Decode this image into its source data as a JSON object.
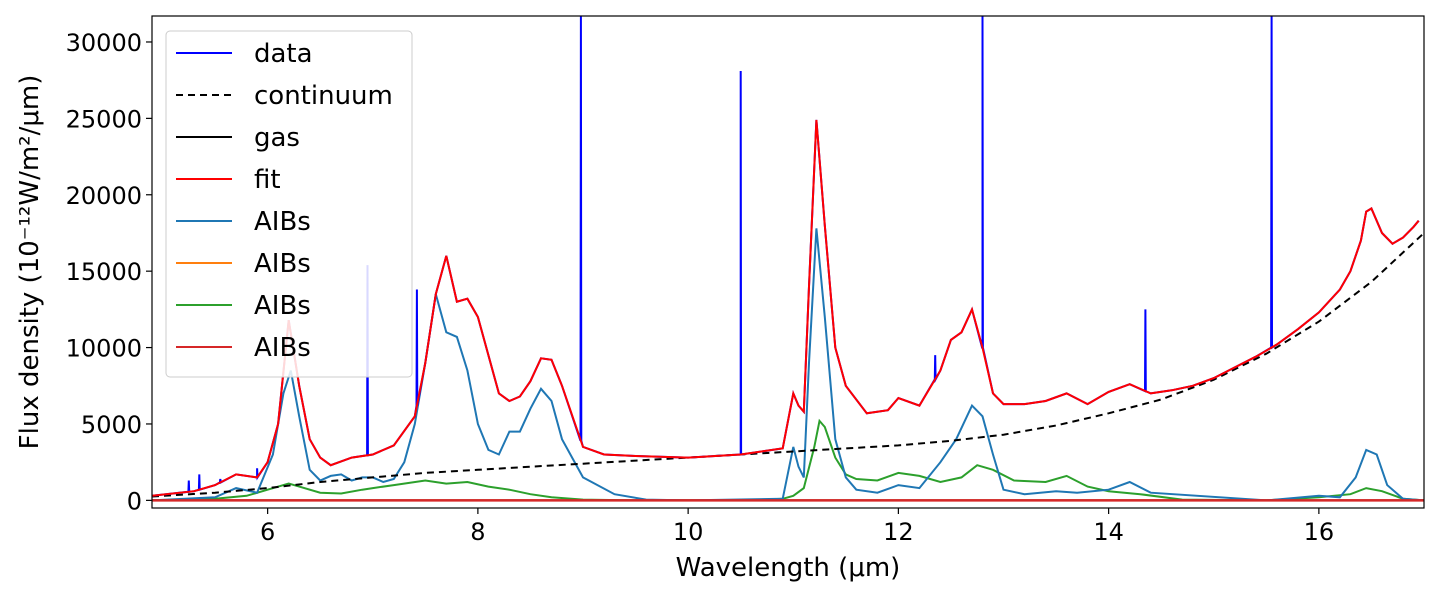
{
  "chart_data": {
    "type": "line",
    "title": "",
    "xlabel": "Wavelength (μm)",
    "ylabel": "Flux density (10⁻¹²W/m²/μm)",
    "xlim": [
      4.9,
      17.0
    ],
    "ylim": [
      -500,
      31700
    ],
    "grid": false,
    "legend_position": "top-left",
    "x_ticks": [
      6,
      8,
      10,
      12,
      14,
      16
    ],
    "y_ticks": [
      0,
      5000,
      10000,
      15000,
      20000,
      25000,
      30000
    ],
    "continuum": {
      "x": [
        4.9,
        5.5,
        6.0,
        6.5,
        7.0,
        7.5,
        8.0,
        8.5,
        9.0,
        9.5,
        10.0,
        10.5,
        11.0,
        11.5,
        12.0,
        12.5,
        13.0,
        13.5,
        14.0,
        14.5,
        15.0,
        15.5,
        16.0,
        16.5,
        17.0
      ],
      "y": [
        250,
        500,
        800,
        1200,
        1500,
        1800,
        2000,
        2200,
        2400,
        2600,
        2800,
        3000,
        3200,
        3400,
        3600,
        3900,
        4300,
        4900,
        5700,
        6600,
        7900,
        9600,
        11700,
        14300,
        17500
      ]
    },
    "fit": {
      "x": [
        4.9,
        5.3,
        5.5,
        5.7,
        5.9,
        6.0,
        6.1,
        6.2,
        6.3,
        6.4,
        6.5,
        6.6,
        6.8,
        7.0,
        7.2,
        7.4,
        7.5,
        7.6,
        7.7,
        7.8,
        7.9,
        8.0,
        8.2,
        8.3,
        8.4,
        8.5,
        8.6,
        8.7,
        8.8,
        9.0,
        9.2,
        9.5,
        10.0,
        10.5,
        10.9,
        11.0,
        11.05,
        11.1,
        11.15,
        11.22,
        11.3,
        11.4,
        11.5,
        11.7,
        11.9,
        12.0,
        12.2,
        12.4,
        12.5,
        12.6,
        12.7,
        12.8,
        12.9,
        13.0,
        13.2,
        13.4,
        13.6,
        13.8,
        14.0,
        14.2,
        14.4,
        14.6,
        14.8,
        15.0,
        15.2,
        15.4,
        15.6,
        15.8,
        16.0,
        16.2,
        16.3,
        16.4,
        16.45,
        16.5,
        16.6,
        16.7,
        16.8,
        16.9,
        16.95
      ],
      "y": [
        300,
        600,
        1000,
        1700,
        1500,
        2500,
        5000,
        11800,
        7500,
        4000,
        2800,
        2300,
        2800,
        3000,
        3600,
        5500,
        9000,
        13500,
        16000,
        13000,
        13200,
        12000,
        7000,
        6500,
        6800,
        7800,
        9300,
        9200,
        7500,
        3500,
        3000,
        2900,
        2800,
        3000,
        3400,
        7000,
        6200,
        5800,
        14000,
        24900,
        18000,
        10000,
        7500,
        5700,
        5900,
        6700,
        6200,
        8500,
        10500,
        11000,
        12500,
        10000,
        7000,
        6300,
        6300,
        6500,
        7000,
        6300,
        7100,
        7600,
        7000,
        7200,
        7500,
        8000,
        8700,
        9400,
        10200,
        11200,
        12300,
        13800,
        15000,
        17000,
        18900,
        19100,
        17500,
        16800,
        17200,
        17900,
        18300
      ]
    },
    "series": [
      {
        "name": "data",
        "color": "#0000ff",
        "style": "solid"
      },
      {
        "name": "continuum",
        "color": "#000000",
        "style": "dashed"
      },
      {
        "name": "gas",
        "color": "#000000",
        "style": "solid"
      },
      {
        "name": "fit",
        "color": "#ff0000",
        "style": "solid"
      },
      {
        "name": "AIBs",
        "color": "#1f77b4",
        "style": "solid"
      },
      {
        "name": "AIBs",
        "color": "#ff7f0e",
        "style": "solid"
      },
      {
        "name": "AIBs",
        "color": "#2ca02c",
        "style": "solid"
      },
      {
        "name": "AIBs",
        "color": "#d62728",
        "style": "solid"
      }
    ],
    "aib_blue": {
      "x": [
        4.9,
        5.5,
        5.7,
        5.9,
        6.05,
        6.15,
        6.22,
        6.3,
        6.4,
        6.5,
        6.6,
        6.7,
        6.8,
        6.9,
        7.0,
        7.1,
        7.2,
        7.3,
        7.4,
        7.5,
        7.6,
        7.7,
        7.8,
        7.9,
        8.0,
        8.1,
        8.2,
        8.3,
        8.4,
        8.5,
        8.6,
        8.7,
        8.8,
        9.0,
        9.3,
        9.6,
        10.0,
        10.9,
        11.0,
        11.05,
        11.1,
        11.15,
        11.22,
        11.3,
        11.4,
        11.5,
        11.6,
        11.8,
        12.0,
        12.2,
        12.4,
        12.55,
        12.7,
        12.8,
        12.9,
        13.0,
        13.2,
        13.5,
        13.7,
        14.0,
        14.2,
        14.4,
        15.5,
        16.0,
        16.2,
        16.35,
        16.45,
        16.55,
        16.65,
        16.8,
        17.0
      ],
      "y": [
        0,
        200,
        800,
        500,
        3000,
        7000,
        8500,
        5500,
        2000,
        1300,
        1600,
        1700,
        1300,
        1500,
        1500,
        1200,
        1400,
        2500,
        5000,
        9000,
        13500,
        11000,
        10700,
        8500,
        5000,
        3300,
        3000,
        4500,
        4500,
        6000,
        7300,
        6500,
        4000,
        1500,
        400,
        50,
        0,
        100,
        3500,
        2200,
        1500,
        9000,
        17800,
        12000,
        4000,
        1500,
        700,
        500,
        1000,
        800,
        2500,
        4000,
        6200,
        5500,
        3000,
        700,
        400,
        600,
        500,
        700,
        1200,
        500,
        0,
        300,
        200,
        1500,
        3300,
        3000,
        1000,
        100,
        0
      ]
    },
    "aib_green": {
      "x": [
        4.9,
        5.5,
        5.8,
        6.0,
        6.2,
        6.3,
        6.5,
        6.7,
        6.9,
        7.0,
        7.2,
        7.5,
        7.7,
        7.9,
        8.1,
        8.3,
        8.5,
        8.7,
        9.0,
        9.5,
        10.5,
        10.9,
        11.0,
        11.1,
        11.2,
        11.25,
        11.3,
        11.4,
        11.5,
        11.6,
        11.8,
        12.0,
        12.2,
        12.4,
        12.6,
        12.75,
        12.9,
        13.1,
        13.4,
        13.6,
        13.8,
        14.0,
        14.3,
        14.7,
        15.5,
        16.0,
        16.3,
        16.45,
        16.6,
        16.8,
        17.0
      ],
      "y": [
        0,
        100,
        300,
        700,
        1100,
        900,
        500,
        450,
        700,
        800,
        1000,
        1300,
        1100,
        1200,
        900,
        700,
        400,
        200,
        50,
        0,
        0,
        100,
        300,
        800,
        3500,
        5200,
        4800,
        2800,
        1700,
        1400,
        1300,
        1800,
        1600,
        1200,
        1500,
        2300,
        2000,
        1300,
        1200,
        1600,
        900,
        600,
        400,
        50,
        0,
        200,
        400,
        800,
        600,
        100,
        0
      ]
    },
    "spikes": [
      {
        "x": 5.25,
        "y": 1300
      },
      {
        "x": 5.35,
        "y": 1700
      },
      {
        "x": 5.55,
        "y": 1400
      },
      {
        "x": 5.9,
        "y": 2100
      },
      {
        "x": 6.95,
        "y": 15400
      },
      {
        "x": 7.42,
        "y": 13800
      },
      {
        "x": 8.98,
        "y": 31700
      },
      {
        "x": 10.5,
        "y": 28100
      },
      {
        "x": 12.35,
        "y": 9500
      },
      {
        "x": 12.8,
        "y": 31700
      },
      {
        "x": 14.35,
        "y": 12500
      },
      {
        "x": 15.55,
        "y": 31700
      }
    ]
  }
}
